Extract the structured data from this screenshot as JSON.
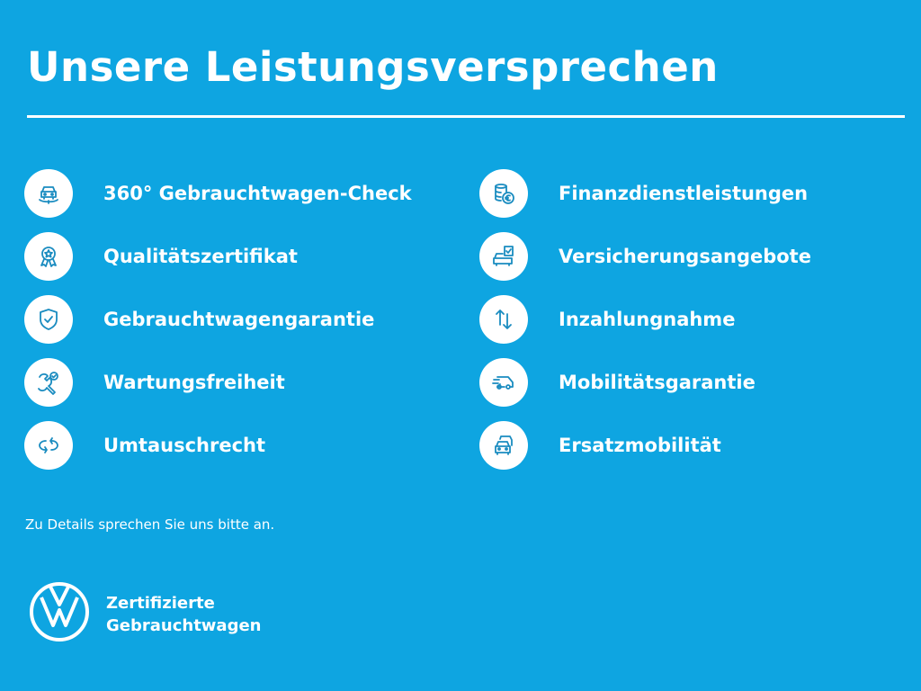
{
  "title": "Unsere Leistungsversprechen",
  "left_items": [
    {
      "label": "360° Gebrauchtwagen-Check",
      "icon": "car-check-icon"
    },
    {
      "label": "Qualitätszertifikat",
      "icon": "award-icon"
    },
    {
      "label": "Gebrauchtwagengarantie",
      "icon": "shield-check-icon"
    },
    {
      "label": "Wartungsfreiheit",
      "icon": "wrench-check-icon"
    },
    {
      "label": "Umtauschrecht",
      "icon": "exchange-arrows-icon"
    }
  ],
  "right_items": [
    {
      "label": "Finanzdienstleistungen",
      "icon": "coins-euro-icon"
    },
    {
      "label": "Versicherungsangebote",
      "icon": "car-document-icon"
    },
    {
      "label": "Inzahlungnahme",
      "icon": "up-down-arrows-icon"
    },
    {
      "label": "Mobilitätsgarantie",
      "icon": "van-icon"
    },
    {
      "label": "Ersatzmobilität",
      "icon": "cars-stack-icon"
    }
  ],
  "note": "Zu Details sprechen Sie uns bitte an.",
  "brand": {
    "line1": "Zertifizierte",
    "line2": "Gebrauchtwagen",
    "logo": "VW"
  },
  "colors": {
    "background": "#0ea5e1",
    "icon": "#1a8cc0"
  }
}
